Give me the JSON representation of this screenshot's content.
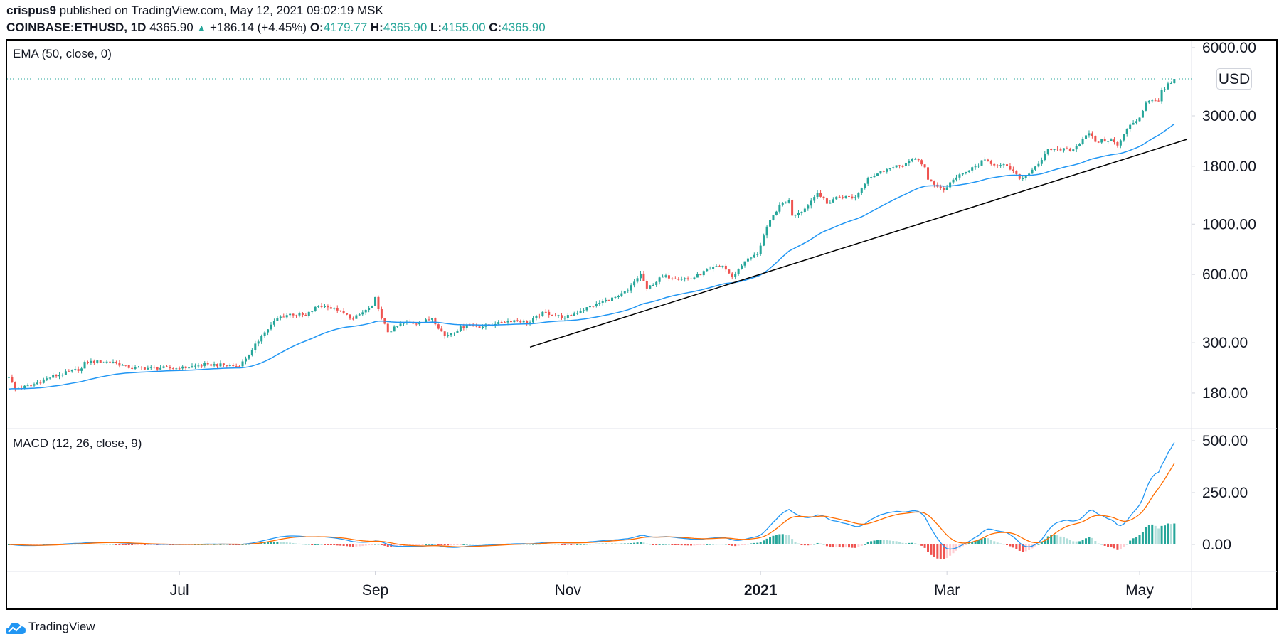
{
  "header": {
    "author": "crispus9",
    "published": " published on TradingView.com, May 12, 2021 09:02:19 MSK",
    "symbol": "COINBASE:ETHUSD, 1D",
    "last": "4365.90",
    "change": "+186.14 (+4.45%)",
    "o_label": "O:",
    "o": "4179.77",
    "h_label": "H:",
    "h": "4365.90",
    "l_label": "L:",
    "l": "4155.00",
    "c_label": "C:",
    "c": "4365.90"
  },
  "footer": {
    "brand": "TradingView"
  },
  "chart_data": {
    "type": "candlestick",
    "scale": "log",
    "currency": "USD",
    "colors": {
      "up": "#26a69a",
      "down": "#ef5350",
      "ema": "#2196f3",
      "macd": "#2196f3",
      "signal": "#ff6d00",
      "hist_up_strong": "#26a69a",
      "hist_up_weak": "#b2dfdb",
      "hist_down_weak": "#ffcdd2",
      "hist_down_strong": "#ef5350",
      "trendline": "#000000",
      "last_price_line": "#26a69a"
    },
    "last_bar": {
      "date": "2021-05-12",
      "open": 4179.77,
      "high": 4365.9,
      "low": 4155.0,
      "close": 4365.9
    },
    "close_points": [
      [
        "2020-05-08",
        212
      ],
      [
        "2020-05-10",
        188
      ],
      [
        "2020-05-15",
        194
      ],
      [
        "2020-05-20",
        209
      ],
      [
        "2020-05-31",
        231
      ],
      [
        "2020-06-01",
        247
      ],
      [
        "2020-06-10",
        247
      ],
      [
        "2020-06-15",
        232
      ],
      [
        "2020-06-25",
        232
      ],
      [
        "2020-07-01",
        231
      ],
      [
        "2020-07-10",
        241
      ],
      [
        "2020-07-20",
        236
      ],
      [
        "2020-07-24",
        279
      ],
      [
        "2020-07-27",
        321
      ],
      [
        "2020-08-01",
        385
      ],
      [
        "2020-08-05",
        402
      ],
      [
        "2020-08-10",
        395
      ],
      [
        "2020-08-14",
        437
      ],
      [
        "2020-08-17",
        430
      ],
      [
        "2020-08-20",
        416
      ],
      [
        "2020-08-25",
        382
      ],
      [
        "2020-08-31",
        435
      ],
      [
        "2020-09-01",
        477
      ],
      [
        "2020-09-03",
        385
      ],
      [
        "2020-09-05",
        334
      ],
      [
        "2020-09-10",
        368
      ],
      [
        "2020-09-15",
        365
      ],
      [
        "2020-09-19",
        385
      ],
      [
        "2020-09-23",
        321
      ],
      [
        "2020-09-30",
        360
      ],
      [
        "2020-10-05",
        353
      ],
      [
        "2020-10-10",
        370
      ],
      [
        "2020-10-15",
        377
      ],
      [
        "2020-10-20",
        369
      ],
      [
        "2020-10-24",
        410
      ],
      [
        "2020-10-31",
        386
      ],
      [
        "2020-11-05",
        415
      ],
      [
        "2020-11-10",
        445
      ],
      [
        "2020-11-17",
        480
      ],
      [
        "2020-11-20",
        510
      ],
      [
        "2020-11-24",
        605
      ],
      [
        "2020-11-26",
        520
      ],
      [
        "2020-12-01",
        588
      ],
      [
        "2020-12-10",
        573
      ],
      [
        "2020-12-16",
        636
      ],
      [
        "2020-12-20",
        655
      ],
      [
        "2020-12-23",
        584
      ],
      [
        "2020-12-27",
        685
      ],
      [
        "2020-12-31",
        738
      ],
      [
        "2021-01-03",
        975
      ],
      [
        "2021-01-07",
        1218
      ],
      [
        "2021-01-10",
        1280
      ],
      [
        "2021-01-11",
        1090
      ],
      [
        "2021-01-15",
        1170
      ],
      [
        "2021-01-19",
        1376
      ],
      [
        "2021-01-22",
        1230
      ],
      [
        "2021-01-25",
        1320
      ],
      [
        "2021-01-31",
        1314
      ],
      [
        "2021-02-04",
        1600
      ],
      [
        "2021-02-10",
        1745
      ],
      [
        "2021-02-14",
        1800
      ],
      [
        "2021-02-19",
        1935
      ],
      [
        "2021-02-20",
        1915
      ],
      [
        "2021-02-22",
        1780
      ],
      [
        "2021-02-23",
        1570
      ],
      [
        "2021-02-28",
        1415
      ],
      [
        "2021-03-03",
        1570
      ],
      [
        "2021-03-10",
        1795
      ],
      [
        "2021-03-13",
        1924
      ],
      [
        "2021-03-17",
        1805
      ],
      [
        "2021-03-20",
        1810
      ],
      [
        "2021-03-24",
        1582
      ],
      [
        "2021-03-25",
        1590
      ],
      [
        "2021-03-31",
        1918
      ],
      [
        "2021-04-02",
        2140
      ],
      [
        "2021-04-10",
        2135
      ],
      [
        "2021-04-15",
        2515
      ],
      [
        "2021-04-17",
        2305
      ],
      [
        "2021-04-22",
        2360
      ],
      [
        "2021-04-24",
        2220
      ],
      [
        "2021-04-28",
        2740
      ],
      [
        "2021-05-01",
        2945
      ],
      [
        "2021-05-03",
        3430
      ],
      [
        "2021-05-05",
        3510
      ],
      [
        "2021-05-07",
        3480
      ],
      [
        "2021-05-08",
        3900
      ],
      [
        "2021-05-09",
        3930
      ],
      [
        "2021-05-10",
        4170
      ],
      [
        "2021-05-11",
        4180
      ],
      [
        "2021-05-12",
        4365.9
      ]
    ],
    "trendline": [
      [
        "2020-10-20",
        287
      ],
      [
        "2021-05-16",
        2364
      ]
    ],
    "price_ticks": [
      {
        "v": 6000,
        "label": "6000.00"
      },
      {
        "v": 3000,
        "label": "3000.00"
      },
      {
        "v": 1800,
        "label": "1800.00"
      },
      {
        "v": 1000,
        "label": "1000.00"
      },
      {
        "v": 600,
        "label": "600.00"
      },
      {
        "v": 300,
        "label": "300.00"
      },
      {
        "v": 180,
        "label": "180.00"
      }
    ],
    "macd_ticks": [
      {
        "v": 500,
        "label": "500.00"
      },
      {
        "v": 250,
        "label": "250.00"
      },
      {
        "v": 0,
        "label": "0.00"
      }
    ],
    "time_ticks": [
      {
        "d": "2020-07-01",
        "label": "Jul",
        "bold": false
      },
      {
        "d": "2020-09-01",
        "label": "Sep",
        "bold": false
      },
      {
        "d": "2020-11-01",
        "label": "Nov",
        "bold": false
      },
      {
        "d": "2021-01-01",
        "label": "2021",
        "bold": true
      },
      {
        "d": "2021-03-01",
        "label": "Mar",
        "bold": false
      },
      {
        "d": "2021-05-01",
        "label": "May",
        "bold": false
      }
    ],
    "ema": {
      "label": "EMA (50, close, 0)",
      "length": 50
    },
    "macd": {
      "label": "MACD (12, 26, close, 9)",
      "fast": 12,
      "slow": 26,
      "signal": 9
    }
  }
}
